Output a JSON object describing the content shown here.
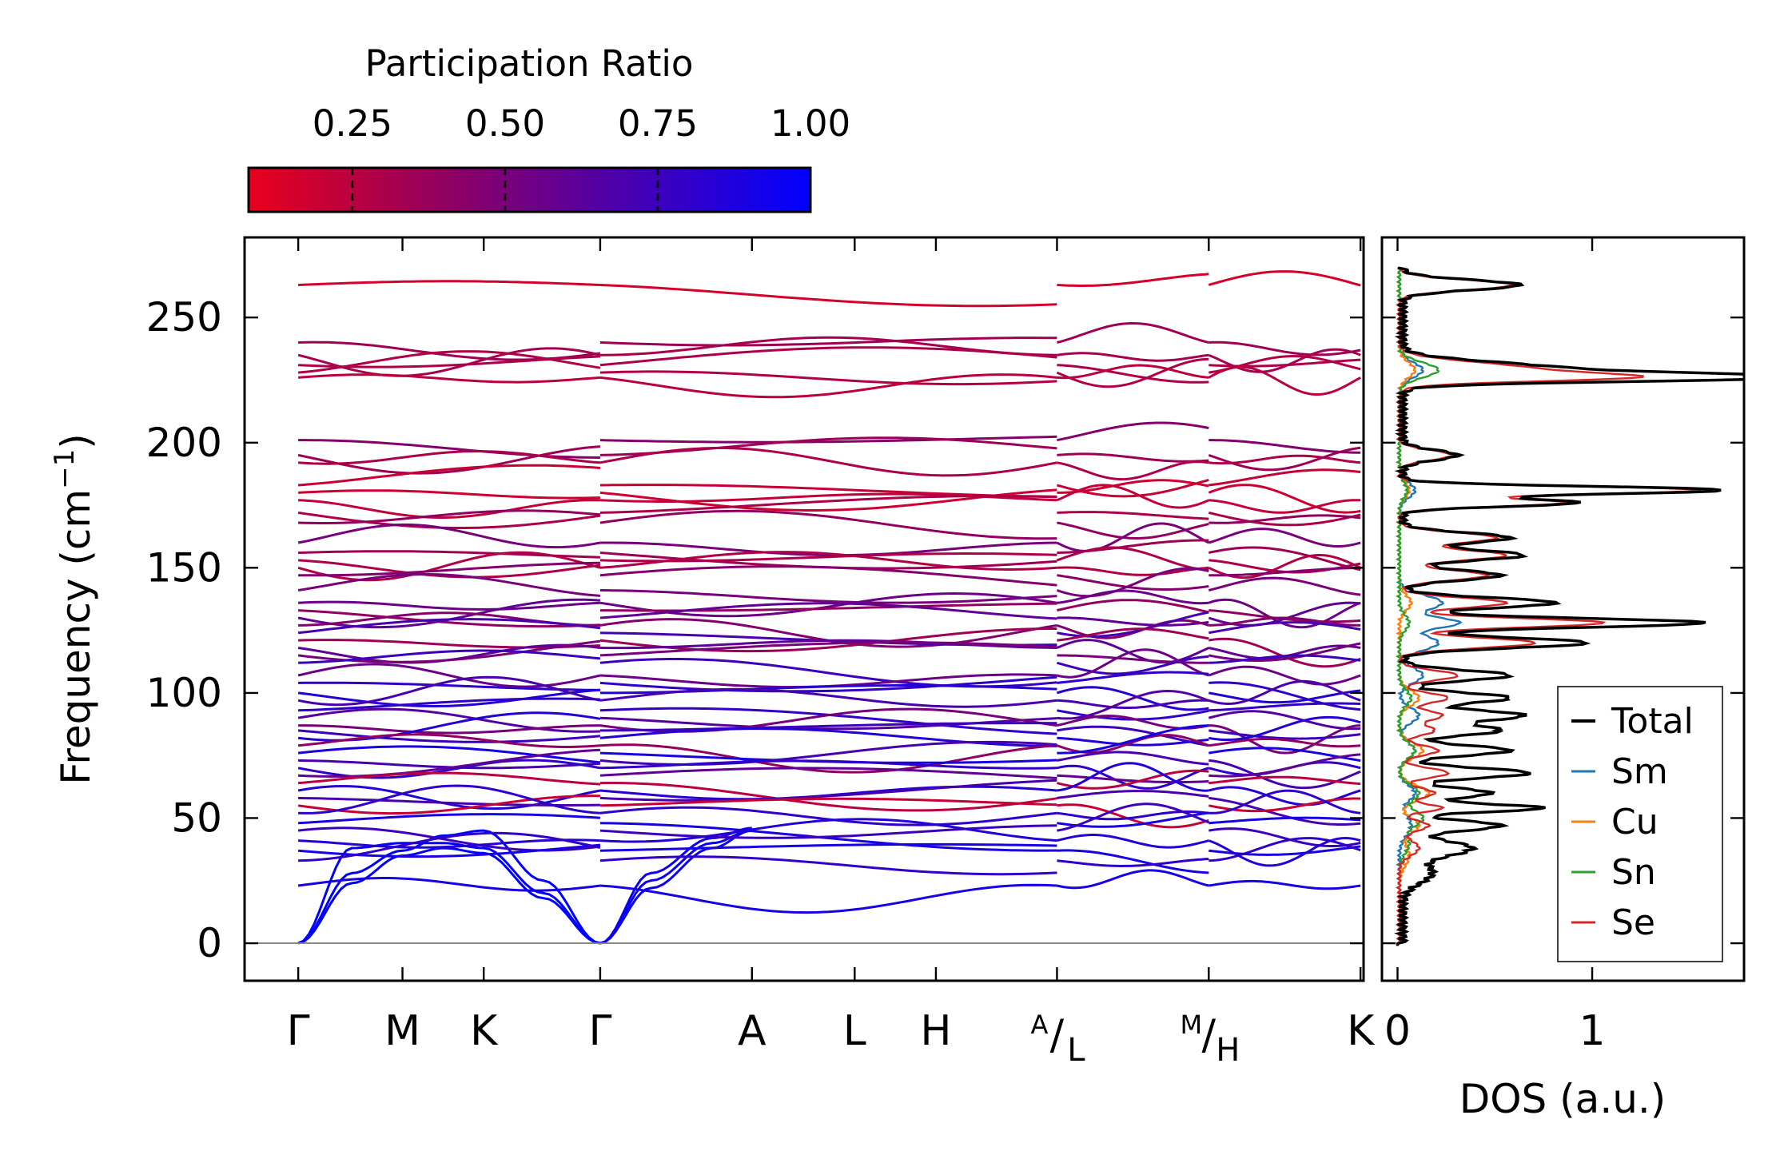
{
  "colorbar": {
    "title": "Participation Ratio",
    "ticks": [
      "0.25",
      "0.50",
      "0.75",
      "1.00"
    ],
    "tick_values": [
      0.25,
      0.5,
      0.75,
      1.0
    ],
    "range": [
      0.08,
      1.0
    ],
    "color_low": "#e8001c",
    "color_mid": "#900060",
    "color_high": "#0000ff"
  },
  "chart_data": [
    {
      "type": "line",
      "name": "phonon-band-structure",
      "ylabel_main": "Frequency (cm",
      "ylabel_sup": "−1",
      "ylabel_close": ")",
      "ylim": [
        -15,
        282
      ],
      "yticks": [
        0,
        50,
        100,
        150,
        200,
        250
      ],
      "ytick_labels": [
        "0",
        "50",
        "100",
        "150",
        "200",
        "250"
      ],
      "xlim": [
        -0.35,
        6.95
      ],
      "kpoints": [
        {
          "pos": 0,
          "label": "Γ"
        },
        {
          "pos": 0.68,
          "label": "M"
        },
        {
          "pos": 1.21,
          "label": "K"
        },
        {
          "pos": 1.97,
          "label": "Γ"
        },
        {
          "pos": 2.96,
          "label": "A"
        },
        {
          "pos": 3.63,
          "label": "L"
        },
        {
          "pos": 4.16,
          "label": "H"
        },
        {
          "pos": 4.95,
          "label": "A",
          "sub": "L"
        },
        {
          "pos": 5.94,
          "label": "M",
          "sub": "H"
        },
        {
          "pos": 6.93,
          "label": "K"
        }
      ],
      "segments": [
        [
          0,
          1.97
        ],
        [
          1.97,
          4.95
        ],
        [
          4.95,
          5.94
        ],
        [
          5.94,
          6.93
        ]
      ],
      "acoustic": {
        "gamma_mk_gamma": [
          {
            "x": [
              0,
              0.35,
              0.68,
              0.95,
              1.21,
              1.6,
              1.97
            ],
            "y": [
              0,
              38,
              40,
              40,
              38,
              20,
              0
            ],
            "pr": 1.0
          },
          {
            "x": [
              0,
              0.35,
              0.68,
              0.95,
              1.21,
              1.6,
              1.97
            ],
            "y": [
              0,
              28,
              37,
              43,
              45,
              25,
              0
            ],
            "pr": 1.0
          },
          {
            "x": [
              0,
              0.35,
              0.68,
              0.95,
              1.21,
              1.6,
              1.97
            ],
            "y": [
              0,
              24,
              35,
              38,
              36,
              18,
              0
            ],
            "pr": 1.0
          }
        ],
        "gamma_a": [
          {
            "x": [
              1.97,
              2.3,
              2.7,
              2.96
            ],
            "y": [
              0,
              28,
              42,
              46
            ],
            "pr": 0.95
          },
          {
            "x": [
              1.97,
              2.3,
              2.7,
              2.96
            ],
            "y": [
              0,
              25,
              40,
              45
            ],
            "pr": 0.95
          },
          {
            "x": [
              1.97,
              2.3,
              2.7,
              2.96
            ],
            "y": [
              0,
              22,
              38,
              45
            ],
            "pr": 0.95
          }
        ]
      },
      "optical_levels": [
        {
          "y": 263,
          "pr": 0.15
        },
        {
          "y": 240,
          "pr": 0.35
        },
        {
          "y": 235,
          "pr": 0.32
        },
        {
          "y": 231,
          "pr": 0.3
        },
        {
          "y": 228,
          "pr": 0.28
        },
        {
          "y": 226,
          "pr": 0.25
        },
        {
          "y": 201,
          "pr": 0.45
        },
        {
          "y": 195,
          "pr": 0.35
        },
        {
          "y": 192,
          "pr": 0.3
        },
        {
          "y": 183,
          "pr": 0.2
        },
        {
          "y": 180,
          "pr": 0.18
        },
        {
          "y": 177,
          "pr": 0.22
        },
        {
          "y": 172,
          "pr": 0.3
        },
        {
          "y": 168,
          "pr": 0.4
        },
        {
          "y": 160,
          "pr": 0.5
        },
        {
          "y": 156,
          "pr": 0.35
        },
        {
          "y": 153,
          "pr": 0.3
        },
        {
          "y": 150,
          "pr": 0.28
        },
        {
          "y": 147,
          "pr": 0.45
        },
        {
          "y": 141,
          "pr": 0.5
        },
        {
          "y": 136,
          "pr": 0.55
        },
        {
          "y": 133,
          "pr": 0.4
        },
        {
          "y": 130,
          "pr": 0.6
        },
        {
          "y": 127,
          "pr": 0.45
        },
        {
          "y": 124,
          "pr": 0.7
        },
        {
          "y": 121,
          "pr": 0.35
        },
        {
          "y": 118,
          "pr": 0.6
        },
        {
          "y": 115,
          "pr": 0.5
        },
        {
          "y": 112,
          "pr": 0.75
        },
        {
          "y": 107,
          "pr": 0.55
        },
        {
          "y": 104,
          "pr": 0.8
        },
        {
          "y": 100,
          "pr": 0.85
        },
        {
          "y": 97,
          "pr": 0.7
        },
        {
          "y": 93,
          "pr": 0.8
        },
        {
          "y": 90,
          "pr": 0.65
        },
        {
          "y": 87,
          "pr": 0.5
        },
        {
          "y": 85,
          "pr": 0.75
        },
        {
          "y": 82,
          "pr": 0.85
        },
        {
          "y": 79,
          "pr": 0.4
        },
        {
          "y": 76,
          "pr": 0.9
        },
        {
          "y": 73,
          "pr": 0.7
        },
        {
          "y": 70,
          "pr": 0.8
        },
        {
          "y": 67,
          "pr": 0.6
        },
        {
          "y": 64,
          "pr": 0.25
        },
        {
          "y": 61,
          "pr": 0.85
        },
        {
          "y": 58,
          "pr": 0.7
        },
        {
          "y": 55,
          "pr": 0.2
        },
        {
          "y": 52,
          "pr": 0.8
        },
        {
          "y": 48,
          "pr": 0.9
        },
        {
          "y": 45,
          "pr": 0.75
        },
        {
          "y": 41,
          "pr": 0.85
        },
        {
          "y": 37,
          "pr": 0.9
        },
        {
          "y": 33,
          "pr": 0.8
        },
        {
          "y": 23,
          "pr": 0.9
        }
      ],
      "zero_line": 0
    },
    {
      "type": "line",
      "name": "phonon-dos",
      "xlabel": "DOS (a.u.)",
      "xlim": [
        -0.08,
        1.78
      ],
      "xticks": [
        0,
        1
      ],
      "xtick_labels": [
        "0",
        "1"
      ],
      "ylim": [
        -15,
        282
      ],
      "legend": "lower-right",
      "series": [
        {
          "name": "Total",
          "color": "#000000",
          "peaks": [
            [
              263,
              0.6,
              2
            ],
            [
              229,
              0.85,
              3
            ],
            [
              226,
              1.58,
              1.5
            ],
            [
              195,
              0.28,
              2
            ],
            [
              181,
              1.65,
              1.5
            ],
            [
              176,
              0.9,
              1.5
            ],
            [
              162,
              0.55,
              2
            ],
            [
              155,
              0.62,
              2
            ],
            [
              147,
              0.5,
              2
            ],
            [
              136,
              0.78,
              2
            ],
            [
              128,
              1.55,
              1.8
            ],
            [
              120,
              0.95,
              2
            ],
            [
              107,
              0.55,
              2
            ],
            [
              98,
              0.55,
              2
            ],
            [
              91,
              0.62,
              2
            ],
            [
              85,
              0.5,
              2
            ],
            [
              77,
              0.55,
              2
            ],
            [
              68,
              0.65,
              2
            ],
            [
              60,
              0.45,
              2
            ],
            [
              54,
              0.72,
              1.5
            ],
            [
              47,
              0.5,
              2
            ],
            [
              38,
              0.35,
              3
            ],
            [
              28,
              0.15,
              4
            ]
          ]
        },
        {
          "name": "Sm",
          "color": "#1f77b4",
          "peaks": [
            [
              229,
              0.12,
              3
            ],
            [
              181,
              0.08,
              3
            ],
            [
              136,
              0.22,
              3
            ],
            [
              128,
              0.3,
              2
            ],
            [
              120,
              0.2,
              3
            ],
            [
              107,
              0.12,
              3
            ],
            [
              91,
              0.1,
              3
            ],
            [
              77,
              0.08,
              3
            ],
            [
              60,
              0.08,
              3
            ],
            [
              47,
              0.06,
              4
            ]
          ]
        },
        {
          "name": "Cu",
          "color": "#ff7f0e",
          "peaks": [
            [
              229,
              0.08,
              3
            ],
            [
              181,
              0.05,
              3
            ],
            [
              136,
              0.06,
              3
            ],
            [
              98,
              0.1,
              3
            ],
            [
              77,
              0.12,
              3
            ],
            [
              60,
              0.15,
              3
            ],
            [
              47,
              0.1,
              3
            ],
            [
              35,
              0.05,
              4
            ]
          ]
        },
        {
          "name": "Sn",
          "color": "#2ca02c",
          "peaks": [
            [
              229,
              0.2,
              3
            ],
            [
              181,
              0.04,
              3
            ],
            [
              128,
              0.05,
              3
            ],
            [
              98,
              0.06,
              3
            ],
            [
              77,
              0.08,
              3
            ],
            [
              60,
              0.1,
              3
            ],
            [
              50,
              0.12,
              3
            ],
            [
              40,
              0.05,
              4
            ]
          ]
        },
        {
          "name": "Se",
          "color": "#d62728",
          "peaks": [
            [
              263,
              0.58,
              2
            ],
            [
              229,
              0.7,
              3
            ],
            [
              226,
              0.8,
              1.5
            ],
            [
              195,
              0.27,
              2
            ],
            [
              181,
              1.55,
              1.5
            ],
            [
              176,
              0.85,
              1.5
            ],
            [
              162,
              0.5,
              2
            ],
            [
              155,
              0.55,
              2
            ],
            [
              147,
              0.45,
              2
            ],
            [
              136,
              0.55,
              2
            ],
            [
              128,
              1.05,
              1.8
            ],
            [
              120,
              0.7,
              2
            ],
            [
              107,
              0.3,
              2
            ],
            [
              98,
              0.25,
              2
            ],
            [
              91,
              0.22,
              2
            ],
            [
              85,
              0.18,
              2
            ],
            [
              77,
              0.2,
              2
            ],
            [
              68,
              0.25,
              2
            ],
            [
              60,
              0.18,
              2
            ],
            [
              54,
              0.22,
              1.5
            ],
            [
              47,
              0.15,
              2
            ],
            [
              38,
              0.1,
              3
            ]
          ]
        }
      ]
    }
  ]
}
